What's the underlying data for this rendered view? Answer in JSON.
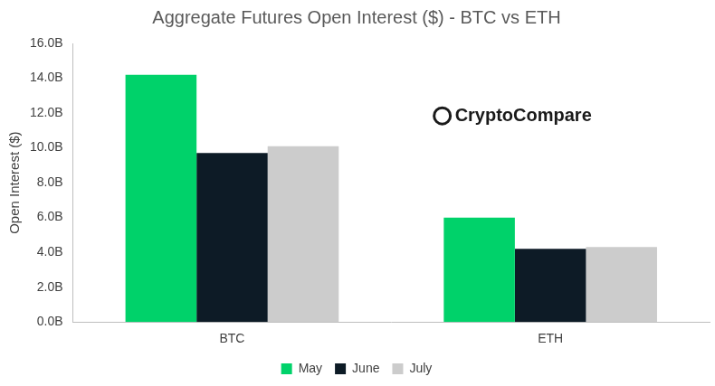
{
  "chart_data": {
    "type": "bar",
    "title": "Aggregate Futures Open Interest ($) - BTC vs ETH",
    "y_label": "Open Interest ($)",
    "annotation": "CryptoCompare",
    "categories": [
      "BTC",
      "ETH"
    ],
    "series": [
      {
        "name": "May",
        "color": "#00d26a",
        "values": [
          14.2,
          6.0
        ]
      },
      {
        "name": "June",
        "color": "#0d1b26",
        "values": [
          9.7,
          4.2
        ]
      },
      {
        "name": "July",
        "color": "#cccccc",
        "values": [
          10.1,
          4.3
        ]
      }
    ],
    "ylim": [
      0,
      16
    ],
    "yticks": [
      {
        "value": 0,
        "label": "0.0B"
      },
      {
        "value": 2,
        "label": "2.0B"
      },
      {
        "value": 4,
        "label": "4.0B"
      },
      {
        "value": 6,
        "label": "6.0B"
      },
      {
        "value": 8,
        "label": "8.0B"
      },
      {
        "value": 10,
        "label": "10.0B"
      },
      {
        "value": 12,
        "label": "12.0B"
      },
      {
        "value": 14,
        "label": "14.0B"
      },
      {
        "value": 16,
        "label": "16.0B"
      }
    ],
    "grid": false,
    "legend": "bottom"
  }
}
